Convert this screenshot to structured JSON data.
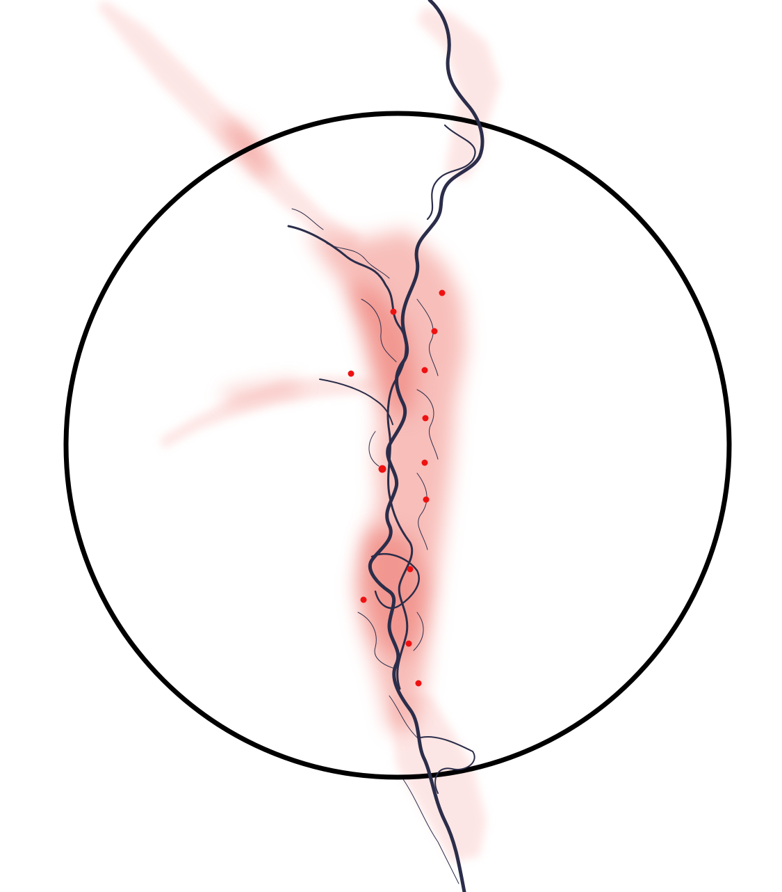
{
  "map": {
    "features": {
      "study_area": "circle-outline",
      "floodplain": "heat-density",
      "river_main": "meandering-channel",
      "river_tributaries": "branching-channels",
      "sites": "point-markers"
    },
    "site_count": 13,
    "colors": {
      "background": "#ffffff",
      "circle": "#000000",
      "river": "#2b2d4a",
      "heat_light": "#fbd9d7",
      "heat_core": "#f1827a",
      "site": "#ee1111"
    }
  }
}
